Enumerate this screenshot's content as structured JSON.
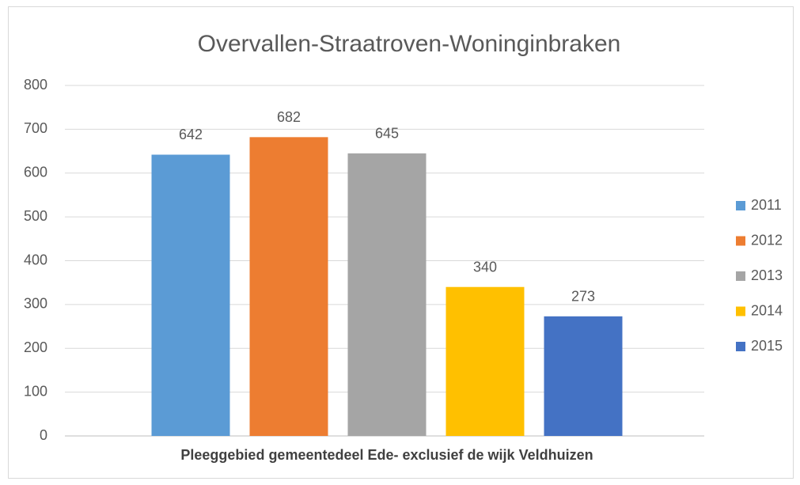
{
  "chart_data": {
    "type": "bar",
    "title": "Overvallen-Straatroven-Woninginbraken",
    "categories": [
      "Pleeggebied gemeentedeel Ede- exclusief de wijk Veldhuizen"
    ],
    "series": [
      {
        "name": "2011",
        "color": "#5b9bd5",
        "values": [
          642
        ]
      },
      {
        "name": "2012",
        "color": "#ed7d31",
        "values": [
          682
        ]
      },
      {
        "name": "2013",
        "color": "#a5a5a5",
        "values": [
          645
        ]
      },
      {
        "name": "2014",
        "color": "#ffc000",
        "values": [
          340
        ]
      },
      {
        "name": "2015",
        "color": "#4472c4",
        "values": [
          273
        ]
      }
    ],
    "ylim": [
      0,
      800
    ],
    "yticks": [
      0,
      100,
      200,
      300,
      400,
      500,
      600,
      700,
      800
    ],
    "grid": true,
    "legend": "right",
    "data_labels": true
  }
}
